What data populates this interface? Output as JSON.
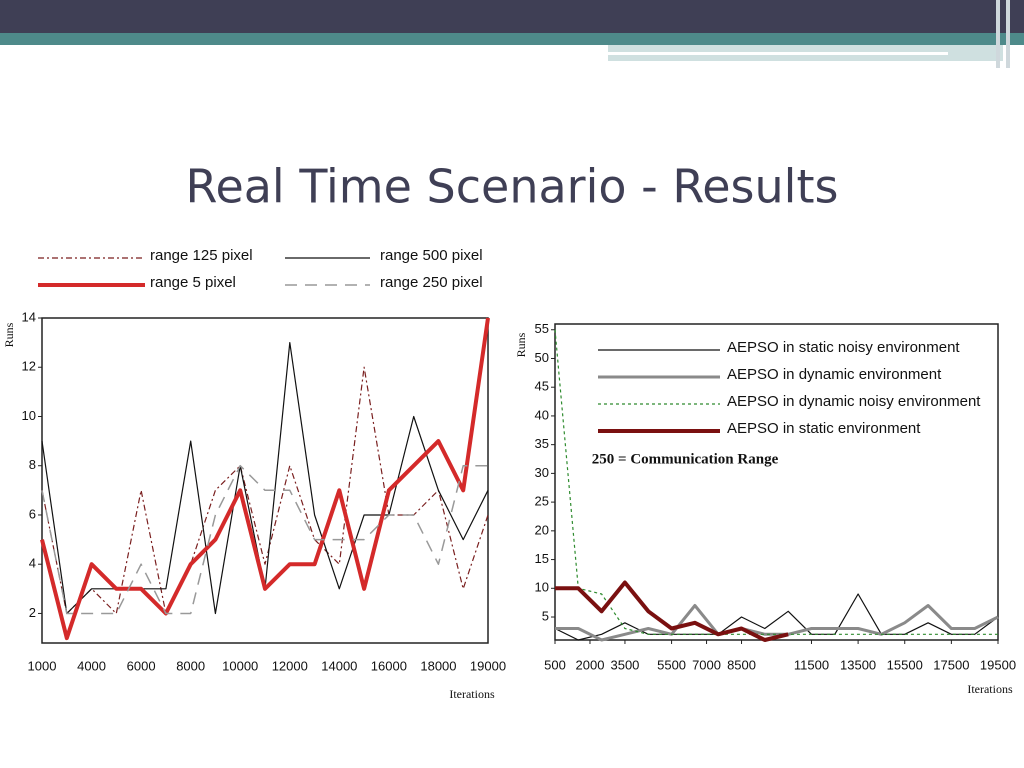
{
  "slide": {
    "title": "Real Time Scenario - Results"
  },
  "chart_data": [
    {
      "type": "line",
      "ylabel": "Runs",
      "xlabel": "Iterations",
      "categories": [
        "1000",
        null,
        "4000",
        null,
        "6000",
        null,
        "8000",
        null,
        "10000",
        null,
        "12000",
        null,
        "14000",
        null,
        "16000",
        null,
        "18000",
        null,
        "19000"
      ],
      "ylim": [
        0.8,
        14
      ],
      "yticks": [
        2,
        4,
        6,
        8,
        10,
        12,
        14
      ],
      "series": [
        {
          "name": "range 125 pixel",
          "color": "#7a1f1f",
          "dash": "6,3,2,3",
          "width": 1.2,
          "values": [
            7,
            2,
            3,
            2,
            7,
            2,
            4,
            7,
            8,
            4,
            8,
            5,
            4,
            12,
            6,
            6,
            7,
            3,
            6
          ]
        },
        {
          "name": "range 500 pixel",
          "color": "#111111",
          "dash": "none",
          "width": 1.2,
          "values": [
            9,
            2,
            3,
            3,
            3,
            3,
            9,
            2,
            8,
            3,
            13,
            6,
            3,
            6,
            6,
            10,
            7,
            5,
            7
          ]
        },
        {
          "name": "range 5   pixel",
          "color": "#d42a2a",
          "dash": "none",
          "width": 4,
          "values": [
            5,
            1,
            4,
            3,
            3,
            2,
            4,
            5,
            7,
            3,
            4,
            4,
            7,
            3,
            7,
            8,
            9,
            7,
            14
          ]
        },
        {
          "name": "range 250 pixel",
          "color": "#999999",
          "dash": "12,8",
          "width": 1.5,
          "values": [
            7,
            2,
            2,
            2,
            4,
            2,
            2,
            6,
            8,
            7,
            7,
            5,
            5,
            5,
            6,
            6,
            4,
            8,
            8
          ]
        }
      ]
    },
    {
      "type": "line",
      "ylabel": "Runs",
      "xlabel": "Iterations",
      "annotation": "250 = Communication Range",
      "x": [
        500,
        1500,
        2500,
        3500,
        4500,
        5500,
        6500,
        7500,
        8500,
        9500,
        10500,
        11500,
        12500,
        13500,
        14500,
        15500,
        16500,
        17500,
        18500,
        19500
      ],
      "xlim": [
        500,
        19500
      ],
      "xticks": [
        500,
        2000,
        3500,
        5500,
        7000,
        8500,
        11500,
        13500,
        15500,
        17500,
        19500
      ],
      "ylim": [
        1,
        56
      ],
      "yticks": [
        5,
        10,
        15,
        20,
        25,
        30,
        35,
        40,
        45,
        50,
        55
      ],
      "series": [
        {
          "name": "AEPSO in static noisy environment",
          "color": "#111111",
          "dash": "none",
          "width": 1.2,
          "values": [
            3,
            1,
            2,
            4,
            2,
            2,
            2,
            2,
            5,
            3,
            6,
            2,
            2,
            9,
            2,
            2,
            4,
            2,
            2,
            5
          ]
        },
        {
          "name": "AEPSO in dynamic environment",
          "color": "#8a8a8a",
          "dash": "none",
          "width": 3,
          "values": [
            3,
            3,
            1,
            2,
            3,
            2,
            7,
            2,
            3,
            2,
            2,
            3,
            3,
            3,
            2,
            4,
            7,
            3,
            3,
            5
          ]
        },
        {
          "name": "AEPSO in dynamic noisy environment",
          "color": "#2e8b2e",
          "dash": "3,3",
          "width": 1.2,
          "values": [
            55,
            10,
            9,
            3,
            2,
            2,
            2,
            2,
            2,
            2,
            2,
            2,
            2,
            2,
            2,
            2,
            2,
            2,
            2,
            2
          ]
        },
        {
          "name": "AEPSO in static environment",
          "color": "#7a1010",
          "dash": "none",
          "width": 4,
          "values": [
            10,
            10,
            6,
            11,
            6,
            3,
            4,
            2,
            3,
            1,
            2,
            null,
            null,
            null,
            null,
            null,
            null,
            null,
            null,
            null
          ]
        }
      ]
    }
  ]
}
